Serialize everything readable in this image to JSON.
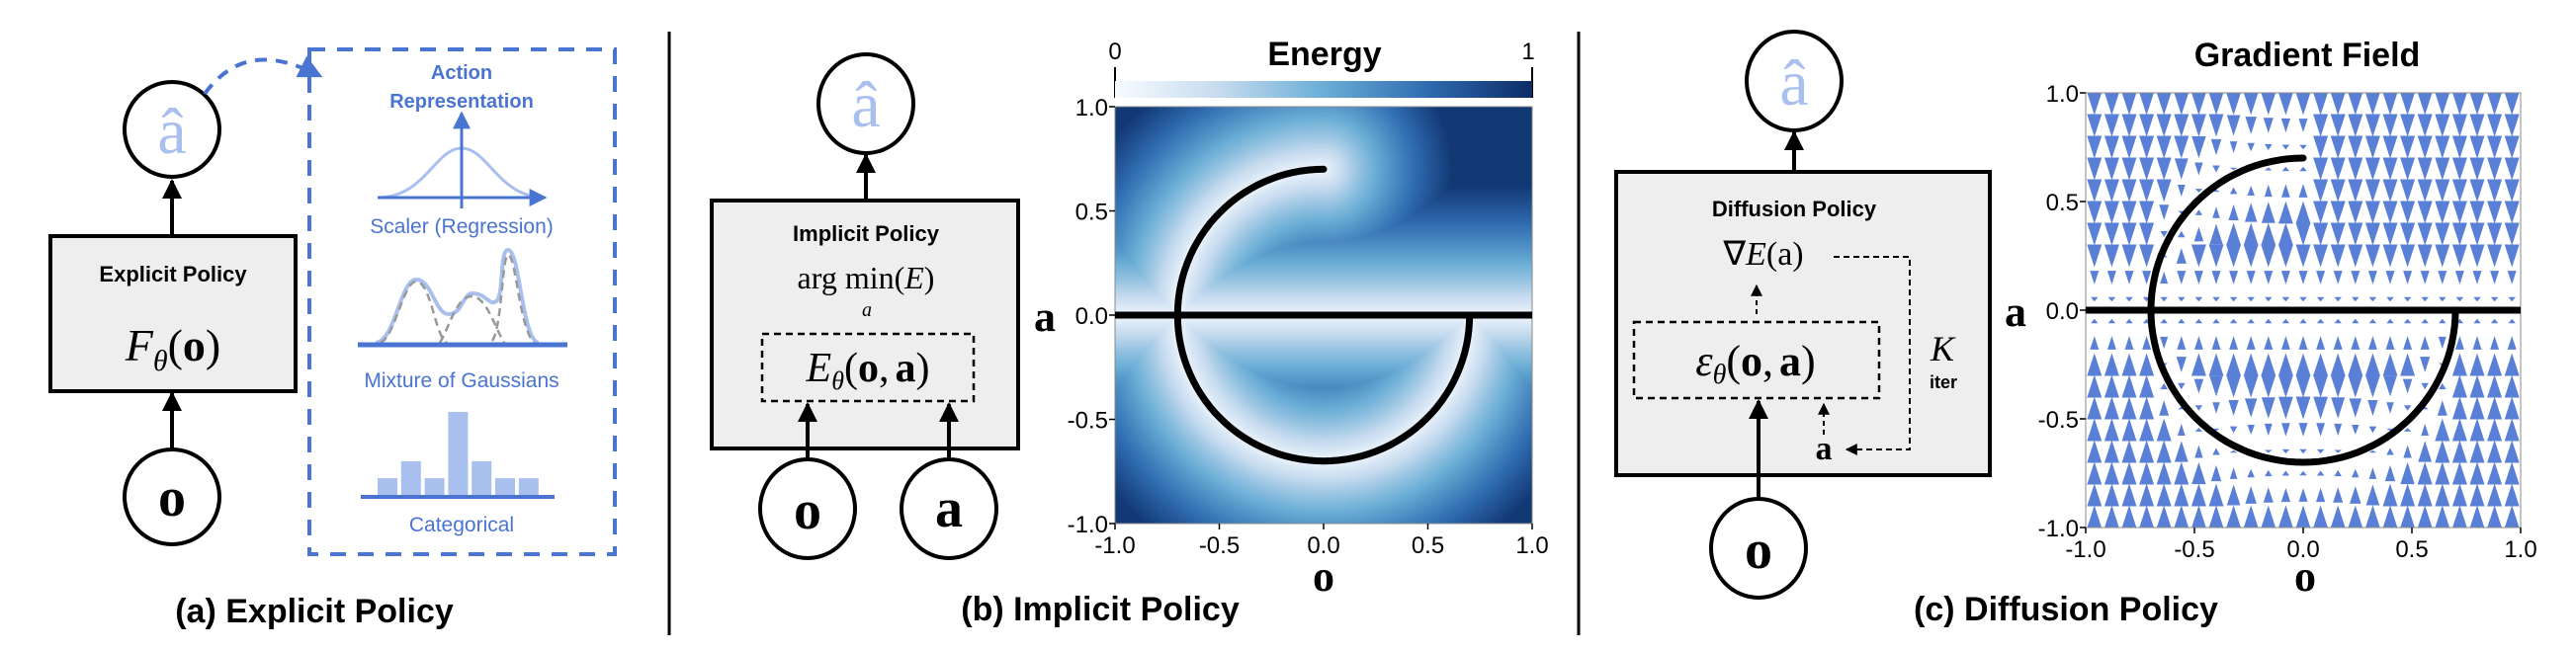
{
  "colors": {
    "accent": "#4a74d2",
    "accent_light": "#a9c0ef",
    "box_fill": "#eeeeee",
    "distribution_dashes": "#999999",
    "gradient_arrows": "#5a7fd6",
    "energy_low": "#f7fbff",
    "energy_mid": "#6baed6",
    "energy_high": "#08306b"
  },
  "panel_a": {
    "caption": "(a) Explicit Policy",
    "output_node": "â",
    "input_node": "o",
    "box_title": "Explicit Policy",
    "formula": {
      "fn": "F",
      "sub": "θ",
      "open": "(",
      "arg": "o",
      "close": ")"
    },
    "action_representation": {
      "title_line1": "Action",
      "title_line2": "Representation",
      "regression_label": "Scaler (Regression)",
      "mog_label": "Mixture of Gaussians",
      "categorical_label": "Categorical",
      "categorical_bar_values": [
        0.22,
        0.42,
        0.22,
        1.0,
        0.42,
        0.22,
        0.22
      ]
    }
  },
  "panel_b": {
    "caption": "(b) Implicit Policy",
    "output_node": "â",
    "input_nodes": [
      "o",
      "a"
    ],
    "box_title": "Implicit Policy",
    "argmin": {
      "arg": "arg",
      "min": "min",
      "open": "(",
      "var": "E",
      "close": ")",
      "sub": "a"
    },
    "energy_fn": {
      "fn": "E",
      "sub": "θ",
      "open": "(",
      "o": "o",
      "comma": ",",
      "a": "a",
      "close": ")"
    }
  },
  "panel_c": {
    "caption": "(c) Diffusion Policy",
    "output_node": "â",
    "input_node": "o",
    "box_title": "Diffusion Policy",
    "grad": {
      "nabla": "∇",
      "var": "E",
      "arg": "(a)"
    },
    "noise_fn": {
      "fn": "ε",
      "sub": "θ",
      "open": "(",
      "o": "o",
      "comma": ",",
      "a": "a",
      "close": ")"
    },
    "loop_var": "a",
    "iterations": {
      "k": "K",
      "label": "iter"
    }
  },
  "chart_data": [
    {
      "type": "heatmap",
      "title": "Energy",
      "colorbar": {
        "min_label": "0",
        "max_label": "1",
        "range": [
          0,
          1
        ],
        "colormap": "Blues",
        "position": "top"
      },
      "xlabel": "o",
      "ylabel": "a",
      "xlim": [
        -1.0,
        1.0
      ],
      "ylim": [
        -1.0,
        1.0
      ],
      "xticks": [
        "-1.0",
        "-0.5",
        "0.0",
        "0.5",
        "1.0"
      ],
      "yticks": [
        "-1.0",
        "-0.5",
        "0.0",
        "0.5",
        "1.0"
      ],
      "curve": {
        "line_a": 0.0,
        "arc_radius": 0.7,
        "arc_start_deg": 90,
        "arc_end_deg": 360
      },
      "grid": false
    },
    {
      "type": "quiver",
      "title": "Gradient Field",
      "xlabel": "o",
      "ylabel": "a",
      "xlim": [
        -1.0,
        1.0
      ],
      "ylim": [
        -1.0,
        1.0
      ],
      "xticks": [
        "-1.0",
        "-0.5",
        "0.0",
        "0.5",
        "1.0"
      ],
      "yticks": [
        "-1.0",
        "-0.5",
        "0.0",
        "0.5",
        "1.0"
      ],
      "curve": {
        "line_a": 0.0,
        "arc_radius": 0.7,
        "arc_start_deg": 90,
        "arc_end_deg": 360
      },
      "grid": false
    }
  ]
}
